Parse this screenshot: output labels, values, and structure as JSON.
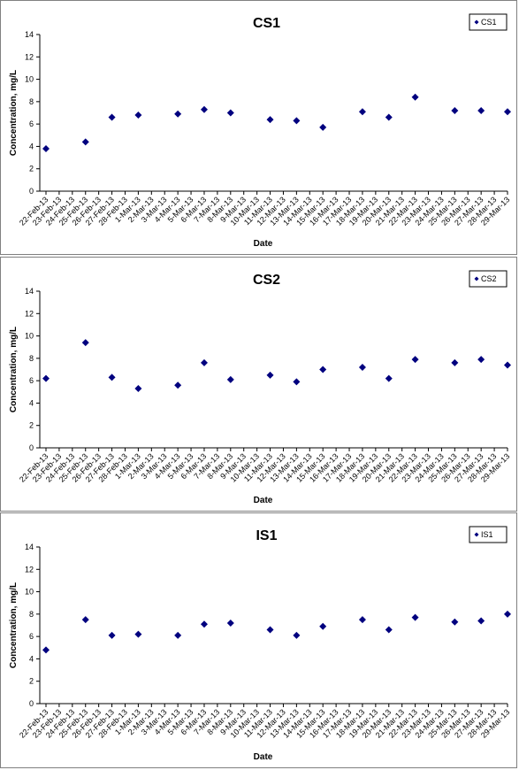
{
  "chart_data": [
    {
      "type": "scatter",
      "title": "CS1",
      "xlabel": "Date",
      "ylabel": "Concentration, mg/L",
      "ylim": [
        0,
        14
      ],
      "yticks": [
        "0",
        "2",
        "4",
        "6",
        "8",
        "10",
        "12",
        "14"
      ],
      "grid": false,
      "legend_position": "top-right",
      "color": "#00007F",
      "categories": [
        "22-Feb-13",
        "23-Feb-13",
        "24-Feb-13",
        "25-Feb-13",
        "26-Feb-13",
        "27-Feb-13",
        "28-Feb-13",
        "1-Mar-13",
        "2-Mar-13",
        "3-Mar-13",
        "4-Mar-13",
        "5-Mar-13",
        "6-Mar-13",
        "7-Mar-13",
        "8-Mar-13",
        "9-Mar-13",
        "10-Mar-13",
        "11-Mar-13",
        "12-Mar-13",
        "13-Mar-13",
        "14-Mar-13",
        "15-Mar-13",
        "16-Mar-13",
        "17-Mar-13",
        "18-Mar-13",
        "19-Mar-13",
        "20-Mar-13",
        "21-Mar-13",
        "22-Mar-13",
        "23-Mar-13",
        "24-Mar-13",
        "25-Mar-13",
        "26-Mar-13",
        "27-Mar-13",
        "28-Mar-13",
        "29-Mar-13"
      ],
      "series": [
        {
          "name": "CS1",
          "points": [
            {
              "x": "22-Feb-13",
              "y": 3.8
            },
            {
              "x": "25-Feb-13",
              "y": 4.4
            },
            {
              "x": "27-Feb-13",
              "y": 6.6
            },
            {
              "x": "1-Mar-13",
              "y": 6.8
            },
            {
              "x": "4-Mar-13",
              "y": 6.9
            },
            {
              "x": "6-Mar-13",
              "y": 7.3
            },
            {
              "x": "8-Mar-13",
              "y": 7.0
            },
            {
              "x": "11-Mar-13",
              "y": 6.4
            },
            {
              "x": "13-Mar-13",
              "y": 6.3
            },
            {
              "x": "15-Mar-13",
              "y": 5.7
            },
            {
              "x": "18-Mar-13",
              "y": 7.1
            },
            {
              "x": "20-Mar-13",
              "y": 6.6
            },
            {
              "x": "22-Mar-13",
              "y": 8.4
            },
            {
              "x": "25-Mar-13",
              "y": 7.2
            },
            {
              "x": "27-Mar-13",
              "y": 7.2
            },
            {
              "x": "29-Mar-13",
              "y": 7.1
            }
          ]
        }
      ]
    },
    {
      "type": "scatter",
      "title": "CS2",
      "xlabel": "Date",
      "ylabel": "Concentration, mg/L",
      "ylim": [
        0,
        14
      ],
      "yticks": [
        "0",
        "2",
        "4",
        "6",
        "8",
        "10",
        "12",
        "14"
      ],
      "grid": false,
      "legend_position": "top-right",
      "color": "#00007F",
      "categories": [
        "22-Feb-13",
        "23-Feb-13",
        "24-Feb-13",
        "25-Feb-13",
        "26-Feb-13",
        "27-Feb-13",
        "28-Feb-13",
        "1-Mar-13",
        "2-Mar-13",
        "3-Mar-13",
        "4-Mar-13",
        "5-Mar-13",
        "6-Mar-13",
        "7-Mar-13",
        "8-Mar-13",
        "9-Mar-13",
        "10-Mar-13",
        "11-Mar-13",
        "12-Mar-13",
        "13-Mar-13",
        "14-Mar-13",
        "15-Mar-13",
        "16-Mar-13",
        "17-Mar-13",
        "18-Mar-13",
        "19-Mar-13",
        "20-Mar-13",
        "21-Mar-13",
        "22-Mar-13",
        "23-Mar-13",
        "24-Mar-13",
        "25-Mar-13",
        "26-Mar-13",
        "27-Mar-13",
        "28-Mar-13",
        "29-Mar-13"
      ],
      "series": [
        {
          "name": "CS2",
          "points": [
            {
              "x": "22-Feb-13",
              "y": 6.2
            },
            {
              "x": "25-Feb-13",
              "y": 9.4
            },
            {
              "x": "27-Feb-13",
              "y": 6.3
            },
            {
              "x": "1-Mar-13",
              "y": 5.3
            },
            {
              "x": "4-Mar-13",
              "y": 5.6
            },
            {
              "x": "6-Mar-13",
              "y": 7.6
            },
            {
              "x": "8-Mar-13",
              "y": 6.1
            },
            {
              "x": "11-Mar-13",
              "y": 6.5
            },
            {
              "x": "13-Mar-13",
              "y": 5.9
            },
            {
              "x": "15-Mar-13",
              "y": 7.0
            },
            {
              "x": "18-Mar-13",
              "y": 7.2
            },
            {
              "x": "20-Mar-13",
              "y": 6.2
            },
            {
              "x": "22-Mar-13",
              "y": 7.9
            },
            {
              "x": "25-Mar-13",
              "y": 7.6
            },
            {
              "x": "27-Mar-13",
              "y": 7.9
            },
            {
              "x": "29-Mar-13",
              "y": 7.4
            }
          ]
        }
      ]
    },
    {
      "type": "scatter",
      "title": "IS1",
      "xlabel": "Date",
      "ylabel": "Concentration, mg/L",
      "ylim": [
        0,
        14
      ],
      "yticks": [
        "0",
        "2",
        "4",
        "6",
        "8",
        "10",
        "12",
        "14"
      ],
      "grid": false,
      "legend_position": "top-right",
      "color": "#00007F",
      "categories": [
        "22-Feb-13",
        "23-Feb-13",
        "24-Feb-13",
        "25-Feb-13",
        "26-Feb-13",
        "27-Feb-13",
        "28-Feb-13",
        "1-Mar-13",
        "2-Mar-13",
        "3-Mar-13",
        "4-Mar-13",
        "5-Mar-13",
        "6-Mar-13",
        "7-Mar-13",
        "8-Mar-13",
        "9-Mar-13",
        "10-Mar-13",
        "11-Mar-13",
        "12-Mar-13",
        "13-Mar-13",
        "14-Mar-13",
        "15-Mar-13",
        "16-Mar-13",
        "17-Mar-13",
        "18-Mar-13",
        "19-Mar-13",
        "20-Mar-13",
        "21-Mar-13",
        "22-Mar-13",
        "23-Mar-13",
        "24-Mar-13",
        "25-Mar-13",
        "26-Mar-13",
        "27-Mar-13",
        "28-Mar-13",
        "29-Mar-13"
      ],
      "series": [
        {
          "name": "IS1",
          "points": [
            {
              "x": "22-Feb-13",
              "y": 4.8
            },
            {
              "x": "25-Feb-13",
              "y": 7.5
            },
            {
              "x": "27-Feb-13",
              "y": 6.1
            },
            {
              "x": "1-Mar-13",
              "y": 6.2
            },
            {
              "x": "4-Mar-13",
              "y": 6.1
            },
            {
              "x": "6-Mar-13",
              "y": 7.1
            },
            {
              "x": "8-Mar-13",
              "y": 7.2
            },
            {
              "x": "11-Mar-13",
              "y": 6.6
            },
            {
              "x": "13-Mar-13",
              "y": 6.1
            },
            {
              "x": "15-Mar-13",
              "y": 6.9
            },
            {
              "x": "18-Mar-13",
              "y": 7.5
            },
            {
              "x": "20-Mar-13",
              "y": 6.6
            },
            {
              "x": "22-Mar-13",
              "y": 7.7
            },
            {
              "x": "25-Mar-13",
              "y": 7.3
            },
            {
              "x": "27-Mar-13",
              "y": 7.4
            },
            {
              "x": "29-Mar-13",
              "y": 8.0
            }
          ]
        }
      ]
    }
  ]
}
